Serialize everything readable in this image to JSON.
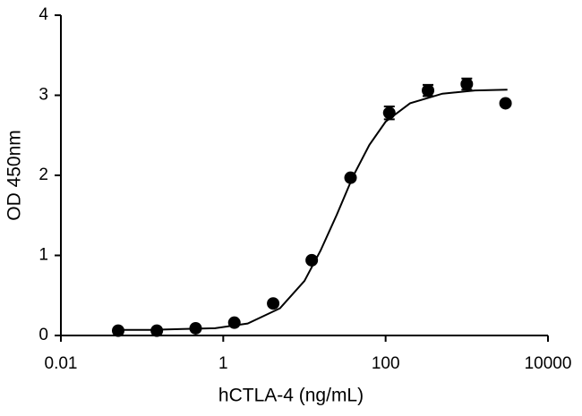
{
  "chart_data": {
    "type": "scatter",
    "xlabel": "hCTLA-4 (ng/mL)",
    "ylabel": "OD 450nm",
    "log_x": true,
    "xlim": [
      0.01,
      10000
    ],
    "xticks": [
      0.01,
      1,
      100,
      10000
    ],
    "ylim": [
      0,
      4
    ],
    "yticks": [
      0,
      1,
      2,
      3,
      4
    ],
    "color": "#000000",
    "x": [
      0.0508,
      0.152,
      0.457,
      1.37,
      4.12,
      12.3,
      37,
      111,
      333,
      1000,
      3000
    ],
    "values": [
      0.06,
      0.06,
      0.09,
      0.16,
      0.4,
      0.94,
      1.97,
      2.78,
      3.06,
      3.14,
      2.9
    ],
    "errors": [
      0.01,
      0.01,
      0.01,
      0.01,
      0.02,
      0.03,
      0.03,
      0.08,
      0.07,
      0.07,
      0.02
    ],
    "fit": {
      "x": [
        0.05,
        0.126,
        0.316,
        0.794,
        2,
        5,
        10,
        15.8,
        25.1,
        39.8,
        63.1,
        100,
        200,
        501,
        1259,
        3162
      ],
      "values": [
        0.07,
        0.07,
        0.08,
        0.09,
        0.15,
        0.34,
        0.68,
        1.06,
        1.51,
        1.99,
        2.38,
        2.67,
        2.9,
        3.02,
        3.06,
        3.07
      ]
    }
  }
}
